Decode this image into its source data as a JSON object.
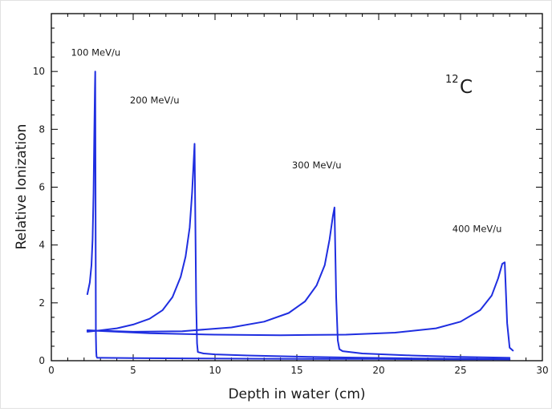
{
  "chart_data": {
    "type": "line",
    "title": "",
    "nucleus": {
      "mass_number": "12",
      "symbol": "C"
    },
    "xlabel": "Depth in water (cm)",
    "ylabel": "Relative Ionization",
    "xlim": [
      0,
      30
    ],
    "ylim": [
      0,
      12
    ],
    "x_ticks": [
      0,
      5,
      10,
      15,
      20,
      25,
      30
    ],
    "y_ticks": [
      0,
      2,
      4,
      6,
      8,
      10
    ],
    "grid": false,
    "series_color": "#1f2ee0",
    "series": [
      {
        "label": "100 MeV/u",
        "label_at": [
          1.2,
          10.55
        ],
        "x": [
          2.2,
          2.35,
          2.45,
          2.52,
          2.58,
          2.62,
          2.66,
          2.68,
          2.72,
          2.74,
          2.76,
          2.8,
          3.0,
          5.0,
          8.0,
          12.0,
          16.0,
          20.0,
          25.0,
          28.0
        ],
        "y": [
          2.3,
          2.7,
          3.3,
          4.2,
          5.8,
          7.6,
          9.4,
          10.0,
          0.9,
          0.35,
          0.15,
          0.1,
          0.1,
          0.09,
          0.08,
          0.07,
          0.06,
          0.06,
          0.05,
          0.05
        ]
      },
      {
        "label": "200 MeV/u",
        "label_at": [
          4.8,
          8.9
        ],
        "x": [
          2.2,
          3.0,
          4.0,
          5.0,
          6.0,
          6.8,
          7.4,
          7.9,
          8.2,
          8.45,
          8.6,
          8.75,
          8.85,
          8.9,
          8.95,
          9.3,
          10.0,
          12.0,
          15.0,
          18.0,
          22.0,
          26.0,
          28.0
        ],
        "y": [
          1.0,
          1.05,
          1.12,
          1.25,
          1.45,
          1.75,
          2.2,
          2.9,
          3.6,
          4.6,
          5.8,
          7.5,
          2.0,
          0.6,
          0.3,
          0.25,
          0.22,
          0.18,
          0.14,
          0.11,
          0.08,
          0.06,
          0.05
        ]
      },
      {
        "label": "300 MeV/u",
        "label_at": [
          14.7,
          6.65
        ],
        "x": [
          2.2,
          5.0,
          8.0,
          11.0,
          13.0,
          14.5,
          15.5,
          16.2,
          16.7,
          17.0,
          17.2,
          17.3,
          17.4,
          17.5,
          17.6,
          17.8,
          19.0,
          22.0,
          25.0,
          28.0
        ],
        "y": [
          1.05,
          1.0,
          1.02,
          1.15,
          1.35,
          1.65,
          2.05,
          2.6,
          3.3,
          4.2,
          5.0,
          5.3,
          2.2,
          0.7,
          0.4,
          0.33,
          0.25,
          0.18,
          0.13,
          0.1
        ]
      },
      {
        "label": "400 MeV/u",
        "label_at": [
          24.5,
          4.45
        ],
        "x": [
          2.2,
          6.0,
          10.0,
          14.0,
          18.0,
          21.0,
          23.5,
          25.0,
          26.2,
          26.9,
          27.3,
          27.55,
          27.7,
          27.85,
          28.0,
          28.2
        ],
        "y": [
          1.05,
          0.95,
          0.9,
          0.88,
          0.9,
          0.97,
          1.12,
          1.35,
          1.75,
          2.25,
          2.85,
          3.35,
          3.4,
          1.3,
          0.45,
          0.35
        ]
      }
    ]
  }
}
